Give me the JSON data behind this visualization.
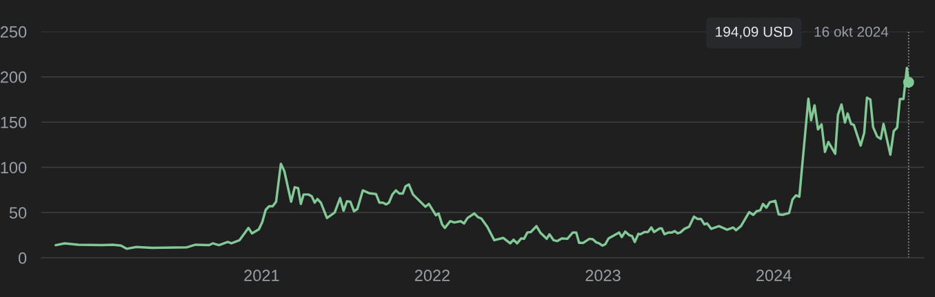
{
  "chart_data": {
    "type": "line",
    "xlim": [
      2019.71,
      2024.88
    ],
    "xticks": [
      2021,
      2022,
      2023,
      2024
    ],
    "ylim": [
      0,
      250
    ],
    "yticks": [
      0,
      50,
      100,
      150,
      200,
      250
    ],
    "grid": "y",
    "marker": "none",
    "line_style": "solid",
    "series": [
      {
        "color": "#81c995",
        "x": [
          2019.794,
          2019.846,
          2019.927,
          2020.064,
          2020.129,
          2020.177,
          2020.209,
          2020.266,
          2020.359,
          2020.56,
          2020.613,
          2020.693,
          2020.714,
          2020.75,
          2020.802,
          2020.823,
          2020.871,
          2020.923,
          2020.944,
          2020.984,
          2021.004,
          2021.024,
          2021.044,
          2021.065,
          2021.085,
          2021.113,
          2021.133,
          2021.173,
          2021.194,
          2021.214,
          2021.23,
          2021.246,
          2021.274,
          2021.294,
          2021.311,
          2021.327,
          2021.347,
          2021.383,
          2021.428,
          2021.46,
          2021.48,
          2021.5,
          2021.52,
          2021.541,
          2021.561,
          2021.593,
          2021.629,
          2021.67,
          2021.69,
          2021.71,
          2021.73,
          2021.746,
          2021.766,
          2021.787,
          2021.807,
          2021.827,
          2021.843,
          2021.863,
          2021.887,
          2021.96,
          2021.98,
          2022.021,
          2022.037,
          2022.057,
          2022.073,
          2022.105,
          2022.129,
          2022.166,
          2022.186,
          2022.206,
          2022.246,
          2022.267,
          2022.287,
          2022.323,
          2022.363,
          2022.416,
          2022.456,
          2022.476,
          2022.497,
          2022.521,
          2022.537,
          2022.557,
          2022.577,
          2022.61,
          2022.634,
          2022.67,
          2022.686,
          2022.71,
          2022.731,
          2022.759,
          2022.791,
          2022.823,
          2022.843,
          2022.86,
          2022.884,
          2022.92,
          2022.94,
          2022.961,
          2022.977,
          2022.997,
          2023.013,
          2023.033,
          2023.094,
          2023.11,
          2023.13,
          2023.154,
          2023.17,
          2023.186,
          2023.207,
          2023.219,
          2023.243,
          2023.263,
          2023.283,
          2023.299,
          2023.332,
          2023.344,
          2023.36,
          2023.384,
          2023.404,
          2023.42,
          2023.437,
          2023.453,
          2023.477,
          2023.505,
          2023.533,
          2023.554,
          2023.574,
          2023.594,
          2023.61,
          2023.634,
          2023.679,
          2023.727,
          2023.763,
          2023.779,
          2023.808,
          2023.856,
          2023.88,
          2023.9,
          2023.921,
          2023.937,
          2023.957,
          2023.977,
          2024.009,
          2024.029,
          2024.05,
          2024.09,
          2024.11,
          2024.13,
          2024.15,
          2024.203,
          2024.219,
          2024.239,
          2024.259,
          2024.28,
          2024.3,
          2024.32,
          2024.36,
          2024.376,
          2024.397,
          2024.417,
          2024.433,
          2024.453,
          2024.469,
          2024.509,
          2024.53,
          2024.546,
          2024.566,
          2024.582,
          2024.606,
          2024.627,
          2024.643,
          2024.683,
          2024.703,
          2024.723,
          2024.739,
          2024.76,
          2024.78,
          2024.79
        ],
        "values": [
          14,
          16,
          14.5,
          14,
          14.5,
          13.5,
          10,
          12,
          11,
          11.5,
          14.5,
          14,
          16,
          14,
          17.5,
          16,
          19.5,
          33,
          27,
          31.5,
          39.5,
          53,
          57,
          57,
          62,
          104,
          96,
          62,
          78,
          77,
          59.5,
          70,
          70,
          68,
          61,
          65,
          61,
          44,
          50,
          66,
          52,
          62.5,
          62,
          51.5,
          54,
          74.5,
          71.5,
          70.5,
          61,
          61,
          59,
          61,
          70,
          74.5,
          71,
          71,
          79,
          81,
          70,
          56.5,
          59.5,
          47,
          49,
          37,
          33,
          40.5,
          39,
          40.5,
          38,
          44,
          49,
          45,
          43.5,
          34,
          19.5,
          22,
          16,
          20,
          16,
          21.5,
          21,
          28,
          28.5,
          35,
          27.5,
          21,
          26,
          19.5,
          18.5,
          21.5,
          21,
          28,
          28,
          16.5,
          16.5,
          21,
          20.5,
          17,
          16,
          13.5,
          15,
          21.5,
          28,
          23,
          29,
          25,
          24,
          17.5,
          26.5,
          26,
          28.5,
          28.5,
          33.5,
          28.5,
          32.5,
          32.5,
          26,
          28,
          28,
          29.5,
          27,
          28,
          32,
          34.5,
          45.5,
          43,
          43,
          37,
          38,
          32,
          35,
          31,
          33.5,
          30.5,
          35,
          50.5,
          47.5,
          51.5,
          52.5,
          59.5,
          55.5,
          61.5,
          63,
          48,
          47.5,
          49.5,
          64.5,
          69,
          67.5,
          176,
          152,
          168.5,
          142,
          147.5,
          117,
          128,
          115,
          158,
          169.5,
          149.5,
          159.5,
          148,
          147,
          124,
          138,
          177,
          175,
          144.5,
          134,
          131.5,
          148,
          114,
          140,
          144,
          175.5,
          175.5,
          210,
          194
        ]
      },
      {
        "type": "scatter",
        "color": "#81c995",
        "marker": "circle",
        "x": [
          2024.79
        ],
        "values": [
          194
        ]
      }
    ],
    "ref_lines": [
      {
        "axis": "x",
        "value": 2024.79,
        "color": "#9aa0a6",
        "line_style": "dotted"
      }
    ],
    "annotations": [
      "194,09 USD",
      "16 okt 2024"
    ]
  }
}
